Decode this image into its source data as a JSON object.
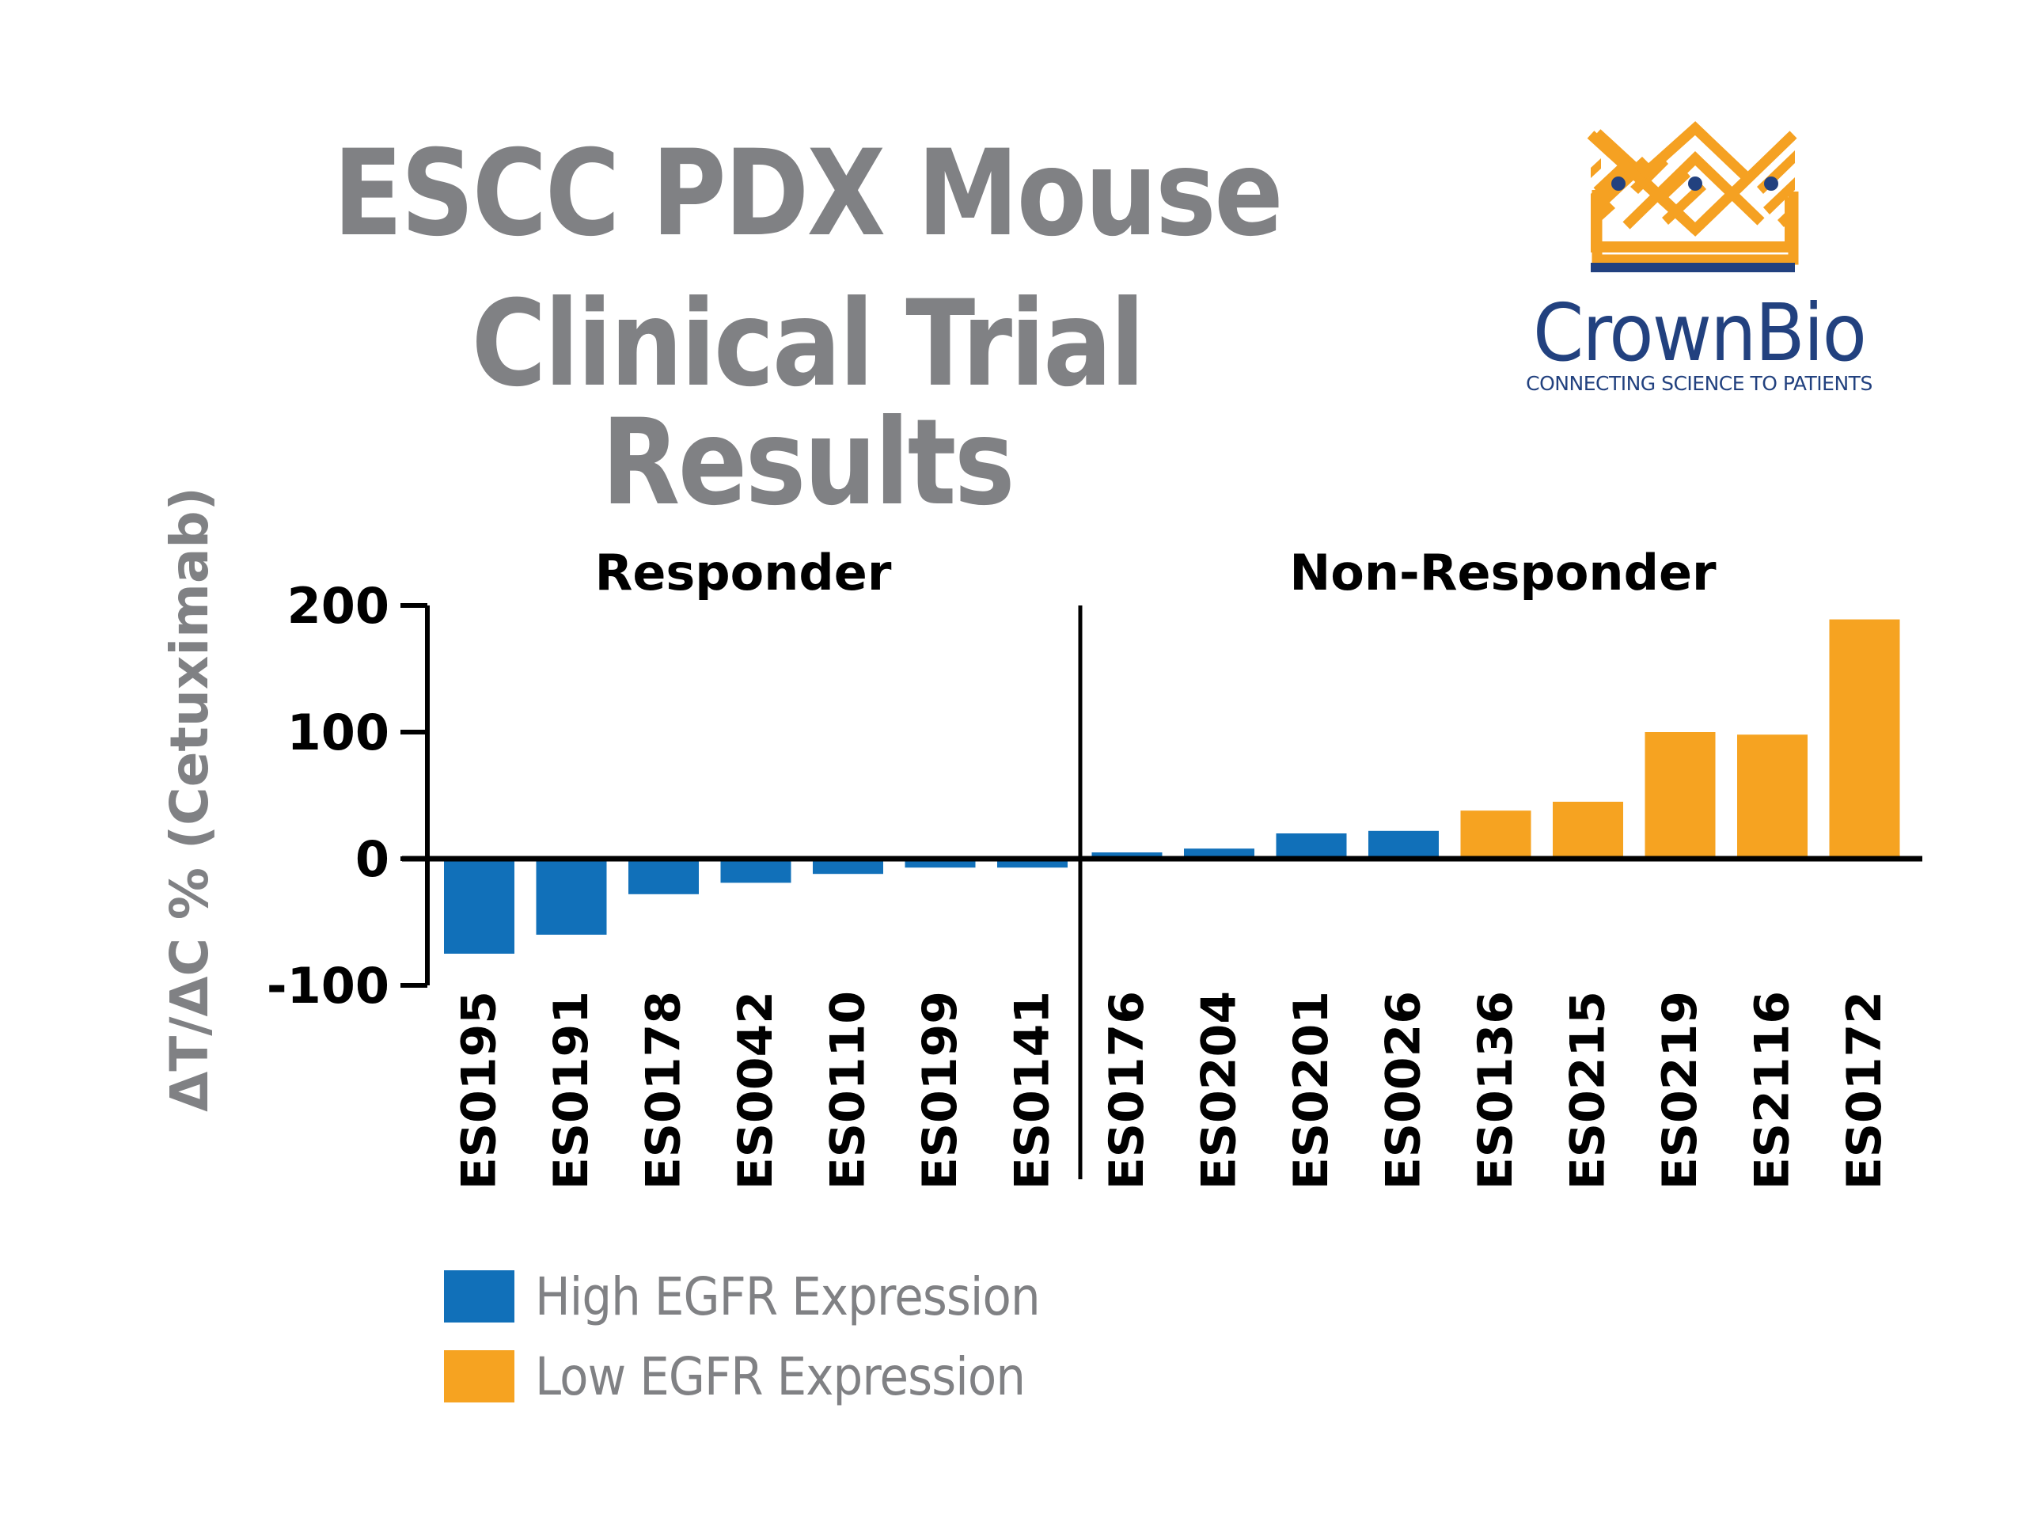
{
  "header": {
    "title_line1": "ESCC PDX Mouse",
    "title_line2": "Clinical Trial Results"
  },
  "logo": {
    "name": "CrownBio",
    "tagline": "CONNECTING SCIENCE TO PATIENTS",
    "colors": {
      "gold": "#f5a122",
      "navy": "#22417f"
    }
  },
  "legend": [
    {
      "label": "High EGFR Expression",
      "color": "#1170b9"
    },
    {
      "label": "Low EGFR Expression",
      "color": "#f6a321"
    }
  ],
  "chart_data": {
    "type": "bar",
    "title": "ESCC PDX Mouse Clinical Trial Results",
    "xlabel": "",
    "ylabel": "ΔT/ΔC % (Cetuximab)",
    "ylim": [
      -100,
      200
    ],
    "yticks": [
      200,
      100,
      0,
      -100
    ],
    "ytick_labels": [
      "200",
      "100",
      "0",
      "-100"
    ],
    "grid": false,
    "legend_position": "bottom-left",
    "groups": [
      {
        "label": "Responder",
        "start": 0,
        "end": 6
      },
      {
        "label": "Non-Responder",
        "start": 7,
        "end": 15
      }
    ],
    "categories": [
      "ES0195",
      "ES0191",
      "ES0178",
      "ES0042",
      "ES0110",
      "ES0199",
      "ES0141",
      "ES0176",
      "ES0204",
      "ES0201",
      "ES0026",
      "ES0136",
      "ES0215",
      "ES0219",
      "ES2116",
      "ES0172"
    ],
    "values": [
      -75,
      -60,
      -28,
      -19,
      -12,
      -7,
      -7,
      5,
      8,
      20,
      22,
      38,
      45,
      100,
      98,
      189
    ],
    "expression": [
      "High",
      "High",
      "High",
      "High",
      "High",
      "High",
      "High",
      "High",
      "High",
      "High",
      "High",
      "Low",
      "Low",
      "Low",
      "Low",
      "Low"
    ],
    "series": [
      {
        "name": "High EGFR Expression",
        "color": "#1170b9"
      },
      {
        "name": "Low EGFR Expression",
        "color": "#f6a321"
      }
    ]
  }
}
